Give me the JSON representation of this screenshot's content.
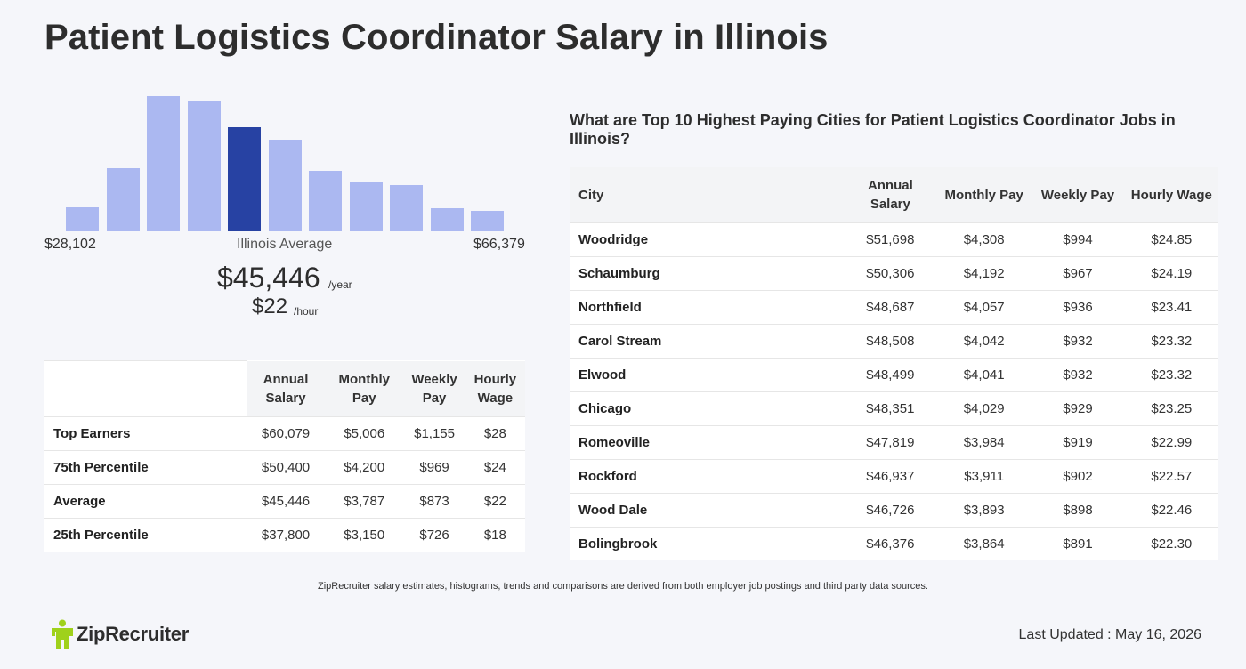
{
  "title": "Patient Logistics Coordinator Salary in Illinois",
  "histogram": {
    "bars": [
      0.18,
      0.47,
      1.0,
      0.97,
      0.77,
      0.68,
      0.45,
      0.36,
      0.34,
      0.17,
      0.15
    ],
    "highlight_index": 4,
    "bar_color": "#abb8f1",
    "highlight_color": "#2742a3"
  },
  "range": {
    "min": "$28,102",
    "label": "Illinois Average",
    "max": "$66,379"
  },
  "average": {
    "year": "$45,446",
    "year_unit": "/year",
    "hour": "$22",
    "hour_unit": "/hour"
  },
  "percentile_table": {
    "headers": [
      "Annual Salary",
      "Monthly Pay",
      "Weekly Pay",
      "Hourly Wage"
    ],
    "rows": [
      {
        "label": "Top Earners",
        "values": [
          "$60,079",
          "$5,006",
          "$1,155",
          "$28"
        ]
      },
      {
        "label": "75th Percentile",
        "values": [
          "$50,400",
          "$4,200",
          "$969",
          "$24"
        ]
      },
      {
        "label": "Average",
        "values": [
          "$45,446",
          "$3,787",
          "$873",
          "$22"
        ]
      },
      {
        "label": "25th Percentile",
        "values": [
          "$37,800",
          "$3,150",
          "$726",
          "$18"
        ]
      }
    ]
  },
  "cities": {
    "heading": "What are Top 10 Highest Paying Cities for Patient Logistics Coordinator Jobs in Illinois?",
    "headers": [
      "City",
      "Annual Salary",
      "Monthly Pay",
      "Weekly Pay",
      "Hourly Wage"
    ],
    "rows": [
      {
        "city": "Woodridge",
        "values": [
          "$51,698",
          "$4,308",
          "$994",
          "$24.85"
        ]
      },
      {
        "city": "Schaumburg",
        "values": [
          "$50,306",
          "$4,192",
          "$967",
          "$24.19"
        ]
      },
      {
        "city": "Northfield",
        "values": [
          "$48,687",
          "$4,057",
          "$936",
          "$23.41"
        ]
      },
      {
        "city": "Carol Stream",
        "values": [
          "$48,508",
          "$4,042",
          "$932",
          "$23.32"
        ]
      },
      {
        "city": "Elwood",
        "values": [
          "$48,499",
          "$4,041",
          "$932",
          "$23.32"
        ]
      },
      {
        "city": "Chicago",
        "values": [
          "$48,351",
          "$4,029",
          "$929",
          "$23.25"
        ]
      },
      {
        "city": "Romeoville",
        "values": [
          "$47,819",
          "$3,984",
          "$919",
          "$22.99"
        ]
      },
      {
        "city": "Rockford",
        "values": [
          "$46,937",
          "$3,911",
          "$902",
          "$22.57"
        ]
      },
      {
        "city": "Wood Dale",
        "values": [
          "$46,726",
          "$3,893",
          "$898",
          "$22.46"
        ]
      },
      {
        "city": "Bolingbrook",
        "values": [
          "$46,376",
          "$3,864",
          "$891",
          "$22.30"
        ]
      }
    ]
  },
  "disclaimer": "ZipRecruiter salary estimates, histograms, trends and comparisons are derived from both employer job postings and third party data sources.",
  "logo": {
    "text": "ZipRecruiter",
    "icon": "ziprecruiter-person-icon",
    "color": "#9fd11c"
  },
  "last_updated": "Last Updated : May 16, 2026"
}
